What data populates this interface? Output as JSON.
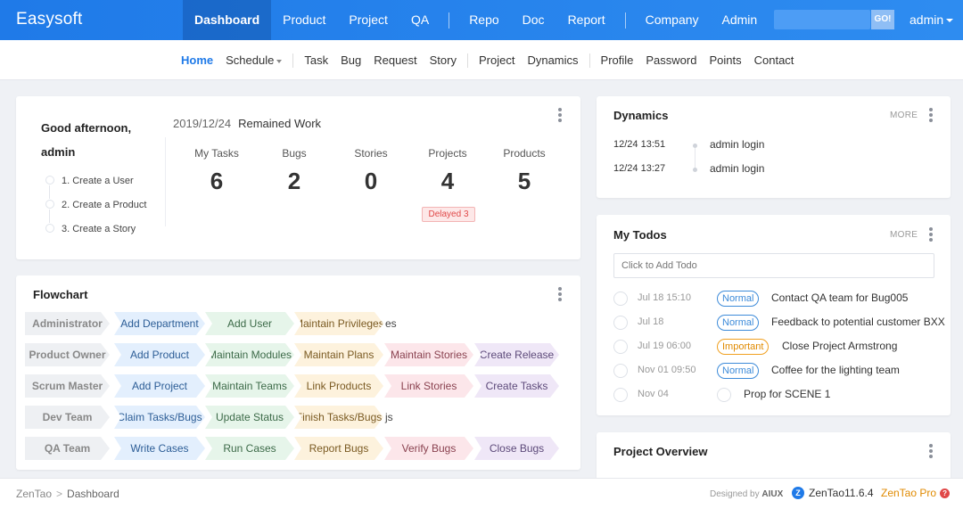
{
  "brand": "Easysoft",
  "main_nav": [
    {
      "label": "Dashboard",
      "active": true
    },
    {
      "label": "Product"
    },
    {
      "label": "Project"
    },
    {
      "label": "QA"
    },
    {
      "sep": true
    },
    {
      "label": "Repo"
    },
    {
      "label": "Doc"
    },
    {
      "label": "Report"
    },
    {
      "sep": true
    },
    {
      "label": "Company"
    },
    {
      "label": "Admin"
    }
  ],
  "search": {
    "value": "",
    "go_label": "GO!"
  },
  "user": "admin",
  "sub_nav": [
    {
      "label": "Home",
      "active": true
    },
    {
      "label": "Schedule",
      "dropdown": true
    },
    {
      "sep": true
    },
    {
      "label": "Task"
    },
    {
      "label": "Bug"
    },
    {
      "label": "Request"
    },
    {
      "label": "Story"
    },
    {
      "sep": true
    },
    {
      "label": "Project"
    },
    {
      "label": "Dynamics"
    },
    {
      "sep": true
    },
    {
      "label": "Profile"
    },
    {
      "label": "Password"
    },
    {
      "label": "Points"
    },
    {
      "label": "Contact"
    }
  ],
  "welcome": {
    "greeting_line1": "Good afternoon,",
    "greeting_line2": "admin",
    "steps": [
      "1. Create a User",
      "2. Create a Product",
      "3. Create a Story"
    ],
    "date": "2019/12/24",
    "remained_label": "Remained Work",
    "stats": [
      {
        "label": "My Tasks",
        "value": "6"
      },
      {
        "label": "Bugs",
        "value": "2"
      },
      {
        "label": "Stories",
        "value": "0"
      },
      {
        "label": "Projects",
        "value": "4"
      },
      {
        "label": "Products",
        "value": "5"
      }
    ],
    "delayed": "Delayed 3"
  },
  "flowchart": {
    "title": "Flowchart",
    "rows": [
      {
        "role": "Administrator",
        "steps": [
          {
            "label": "Add Department",
            "color": "blue"
          },
          {
            "label": "Add User",
            "color": "green"
          },
          {
            "label": "Maintain Privileges",
            "color": "orange"
          }
        ],
        "tail": "es"
      },
      {
        "role": "Product Owner",
        "steps": [
          {
            "label": "Add Product",
            "color": "blue"
          },
          {
            "label": "Maintain Modules",
            "color": "green"
          },
          {
            "label": "Maintain Plans",
            "color": "orange"
          },
          {
            "label": "Maintain Stories",
            "color": "pink"
          },
          {
            "label": "Create Release",
            "color": "purple"
          }
        ]
      },
      {
        "role": "Scrum Master",
        "steps": [
          {
            "label": "Add Project",
            "color": "blue"
          },
          {
            "label": "Maintain Teams",
            "color": "green"
          },
          {
            "label": "Link Products",
            "color": "orange"
          },
          {
            "label": "Link Stories",
            "color": "pink"
          },
          {
            "label": "Create Tasks",
            "color": "purple"
          }
        ]
      },
      {
        "role": "Dev Team",
        "steps": [
          {
            "label": "Claim Tasks/Bugs",
            "color": "blue"
          },
          {
            "label": "Update Status",
            "color": "green"
          },
          {
            "label": "Finish Tasks/Bugs",
            "color": "orange"
          }
        ],
        "tail": "js"
      },
      {
        "role": "QA Team",
        "steps": [
          {
            "label": "Write Cases",
            "color": "blue"
          },
          {
            "label": "Run Cases",
            "color": "green"
          },
          {
            "label": "Report Bugs",
            "color": "orange"
          },
          {
            "label": "Verify Bugs",
            "color": "pink"
          },
          {
            "label": "Close Bugs",
            "color": "purple"
          }
        ]
      }
    ]
  },
  "dynamics": {
    "title": "Dynamics",
    "more": "MORE",
    "items": [
      {
        "time": "12/24 13:51",
        "text": "admin login"
      },
      {
        "time": "12/24 13:27",
        "text": "admin login"
      }
    ]
  },
  "todos": {
    "title": "My Todos",
    "more": "MORE",
    "placeholder": "Click to Add Todo",
    "items": [
      {
        "when": "Jul 18 15:10",
        "badge": "Normal",
        "text": "Contact QA team for Bug005"
      },
      {
        "when": "Jul 18",
        "badge": "Normal",
        "text": "Feedback to potential customer BXX"
      },
      {
        "when": "Jul 19 06:00",
        "badge": "Important",
        "text": "Close Project Armstrong"
      },
      {
        "when": "Nov 01 09:50",
        "badge": "Normal",
        "text": "Coffee for the lighting team"
      },
      {
        "when": "Nov 04",
        "badge": "",
        "text": "Prop for SCENE 1"
      }
    ]
  },
  "overview": {
    "title": "Project Overview"
  },
  "footer": {
    "crumb_root": "ZenTao",
    "crumb_sep": ">",
    "crumb_current": "Dashboard",
    "designed_prefix": "Designed by",
    "designed_by": "AIUX",
    "version": "ZenTao11.6.4",
    "pro": "ZenTao Pro",
    "badge_icon": "?"
  },
  "colors": {
    "topbar": "#1f7ae8",
    "accent": "#1f7ae8",
    "delayed": "#e04848",
    "important": "#e08a00"
  },
  "icons": [
    "kebab-menu-icon",
    "caret-down-icon",
    "zentao-logo-icon",
    "help-badge-icon"
  ]
}
